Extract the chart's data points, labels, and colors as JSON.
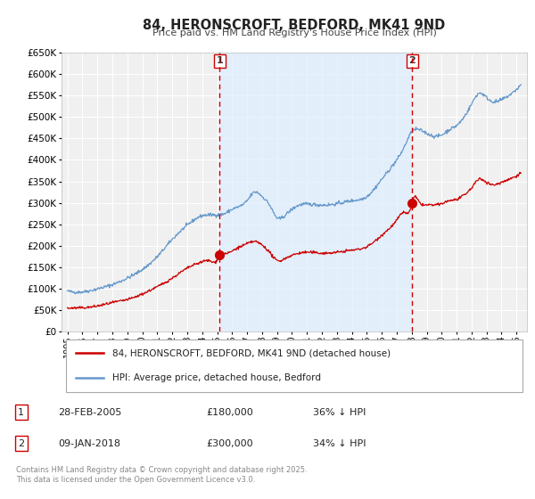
{
  "title": "84, HERONSCROFT, BEDFORD, MK41 9ND",
  "subtitle": "Price paid vs. HM Land Registry's House Price Index (HPI)",
  "legend_label_red": "84, HERONSCROFT, BEDFORD, MK41 9ND (detached house)",
  "legend_label_blue": "HPI: Average price, detached house, Bedford",
  "sale1_date": "28-FEB-2005",
  "sale1_date_num": 2005.16,
  "sale1_price": 180000,
  "sale1_hpi_note": "36% ↓ HPI",
  "sale2_date": "09-JAN-2018",
  "sale2_date_num": 2018.03,
  "sale2_price": 300000,
  "sale2_hpi_note": "34% ↓ HPI",
  "red_color": "#cc0000",
  "blue_color": "#6699cc",
  "shade_color": "#ddeeff",
  "vline_color": "#cc0000",
  "bg_color": "#ffffff",
  "plot_bg_color": "#f0f0f0",
  "grid_color": "#ffffff",
  "ylim_min": 0,
  "ylim_max": 650000,
  "xlim_min": 1994.6,
  "xlim_max": 2025.7,
  "footer": "Contains HM Land Registry data © Crown copyright and database right 2025.\nThis data is licensed under the Open Government Licence v3.0.",
  "marker_size": 7,
  "hpi_keypoints": [
    [
      1995.0,
      95000
    ],
    [
      1996.0,
      93000
    ],
    [
      1997.0,
      100000
    ],
    [
      1998.0,
      110000
    ],
    [
      1999.0,
      125000
    ],
    [
      2000.0,
      145000
    ],
    [
      2001.0,
      175000
    ],
    [
      2002.0,
      215000
    ],
    [
      2003.0,
      248000
    ],
    [
      2004.0,
      270000
    ],
    [
      2004.5,
      272000
    ],
    [
      2005.0,
      272000
    ],
    [
      2005.5,
      275000
    ],
    [
      2006.0,
      285000
    ],
    [
      2007.0,
      305000
    ],
    [
      2007.5,
      325000
    ],
    [
      2008.0,
      315000
    ],
    [
      2008.5,
      295000
    ],
    [
      2009.0,
      265000
    ],
    [
      2009.5,
      270000
    ],
    [
      2010.0,
      285000
    ],
    [
      2010.5,
      295000
    ],
    [
      2011.0,
      297000
    ],
    [
      2012.0,
      295000
    ],
    [
      2013.0,
      298000
    ],
    [
      2014.0,
      305000
    ],
    [
      2015.0,
      315000
    ],
    [
      2016.0,
      355000
    ],
    [
      2017.0,
      400000
    ],
    [
      2017.5,
      430000
    ],
    [
      2018.0,
      465000
    ],
    [
      2018.5,
      470000
    ],
    [
      2019.0,
      462000
    ],
    [
      2019.5,
      455000
    ],
    [
      2020.0,
      458000
    ],
    [
      2020.5,
      470000
    ],
    [
      2021.0,
      480000
    ],
    [
      2021.5,
      500000
    ],
    [
      2022.0,
      530000
    ],
    [
      2022.5,
      555000
    ],
    [
      2023.0,
      545000
    ],
    [
      2023.5,
      535000
    ],
    [
      2024.0,
      540000
    ],
    [
      2024.5,
      550000
    ],
    [
      2025.3,
      575000
    ]
  ],
  "red_keypoints": [
    [
      1995.0,
      55000
    ],
    [
      1996.0,
      56000
    ],
    [
      1997.0,
      60000
    ],
    [
      1998.0,
      68000
    ],
    [
      1999.0,
      75000
    ],
    [
      2000.0,
      88000
    ],
    [
      2001.0,
      105000
    ],
    [
      2002.0,
      125000
    ],
    [
      2003.0,
      148000
    ],
    [
      2004.0,
      163000
    ],
    [
      2004.5,
      165000
    ],
    [
      2005.0,
      168000
    ],
    [
      2005.16,
      180000
    ],
    [
      2005.5,
      182000
    ],
    [
      2006.0,
      188000
    ],
    [
      2007.0,
      205000
    ],
    [
      2007.5,
      210000
    ],
    [
      2008.0,
      202000
    ],
    [
      2008.5,
      185000
    ],
    [
      2009.0,
      166000
    ],
    [
      2009.5,
      170000
    ],
    [
      2010.0,
      178000
    ],
    [
      2010.5,
      183000
    ],
    [
      2011.0,
      185000
    ],
    [
      2012.0,
      183000
    ],
    [
      2013.0,
      185000
    ],
    [
      2014.0,
      190000
    ],
    [
      2015.0,
      198000
    ],
    [
      2016.0,
      225000
    ],
    [
      2017.0,
      260000
    ],
    [
      2017.5,
      278000
    ],
    [
      2018.0,
      295000
    ],
    [
      2018.03,
      300000
    ],
    [
      2018.5,
      302000
    ],
    [
      2019.0,
      295000
    ],
    [
      2019.5,
      295000
    ],
    [
      2020.0,
      298000
    ],
    [
      2020.5,
      305000
    ],
    [
      2021.0,
      308000
    ],
    [
      2021.5,
      318000
    ],
    [
      2022.0,
      335000
    ],
    [
      2022.5,
      355000
    ],
    [
      2023.0,
      348000
    ],
    [
      2023.5,
      342000
    ],
    [
      2024.0,
      348000
    ],
    [
      2024.5,
      355000
    ],
    [
      2025.3,
      370000
    ]
  ]
}
